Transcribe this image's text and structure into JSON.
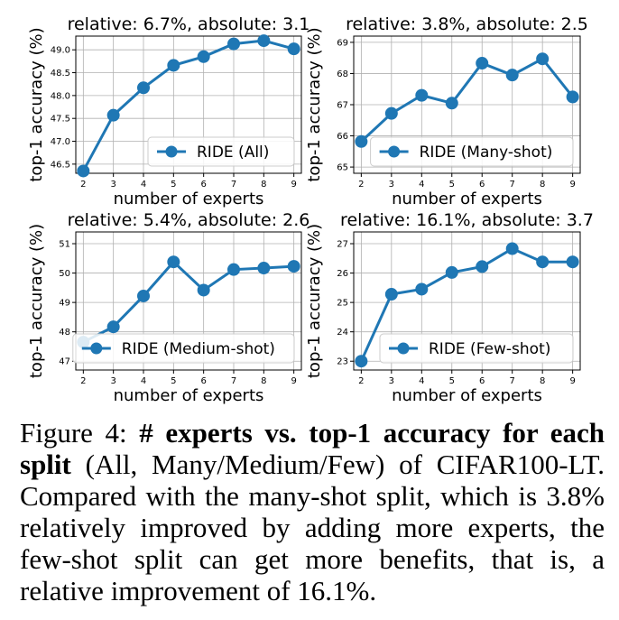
{
  "chart_data": [
    {
      "type": "line",
      "title": "relative: 6.7%, absolute: 3.1",
      "xlabel": "number of experts",
      "ylabel": "top-1 accuracy (%)",
      "x": [
        2,
        3,
        4,
        5,
        6,
        7,
        8,
        9
      ],
      "xticks": [
        "2",
        "3",
        "4",
        "5",
        "6",
        "7",
        "8",
        "9"
      ],
      "yticks": [
        "46.5",
        "47.0",
        "47.5",
        "48.0",
        "48.5",
        "49.0"
      ],
      "ylim": [
        46.3,
        49.3
      ],
      "grid": true,
      "legend_position": "bottom-right",
      "series": [
        {
          "name": "RIDE (All)",
          "values": [
            46.35,
            47.57,
            48.17,
            48.66,
            48.85,
            49.13,
            49.2,
            49.02
          ]
        }
      ]
    },
    {
      "type": "line",
      "title": "relative: 3.8%, absolute: 2.5",
      "xlabel": "number of experts",
      "ylabel": "top-1 accuracy (%)",
      "x": [
        2,
        3,
        4,
        5,
        6,
        7,
        8,
        9
      ],
      "xticks": [
        "2",
        "3",
        "4",
        "5",
        "6",
        "7",
        "8",
        "9"
      ],
      "yticks": [
        "65",
        "66",
        "67",
        "68",
        "69"
      ],
      "ylim": [
        64.8,
        69.2
      ],
      "grid": true,
      "legend_position": "bottom-right",
      "series": [
        {
          "name": "RIDE (Many-shot)",
          "values": [
            65.82,
            66.72,
            67.3,
            67.05,
            68.33,
            67.95,
            68.47,
            67.25
          ]
        }
      ]
    },
    {
      "type": "line",
      "title": "relative: 5.4%, absolute: 2.6",
      "xlabel": "number of experts",
      "ylabel": "top-1 accuracy (%)",
      "x": [
        2,
        3,
        4,
        5,
        6,
        7,
        8,
        9
      ],
      "xticks": [
        "2",
        "3",
        "4",
        "5",
        "6",
        "7",
        "8",
        "9"
      ],
      "yticks": [
        "47",
        "48",
        "49",
        "50",
        "51"
      ],
      "ylim": [
        46.7,
        51.4
      ],
      "grid": true,
      "legend_position": "bottom-right",
      "series": [
        {
          "name": "RIDE (Medium-shot)",
          "values": [
            47.65,
            48.17,
            49.22,
            50.38,
            49.42,
            50.12,
            50.17,
            50.23
          ]
        }
      ]
    },
    {
      "type": "line",
      "title": "relative: 16.1%, absolute: 3.7",
      "xlabel": "number of experts",
      "ylabel": "top-1 accuracy (%)",
      "x": [
        2,
        3,
        4,
        5,
        6,
        7,
        8,
        9
      ],
      "xticks": [
        "2",
        "3",
        "4",
        "5",
        "6",
        "7",
        "8",
        "9"
      ],
      "yticks": [
        "23",
        "24",
        "25",
        "26",
        "27"
      ],
      "ylim": [
        22.7,
        27.4
      ],
      "grid": true,
      "legend_position": "bottom-right",
      "series": [
        {
          "name": "RIDE (Few-shot)",
          "values": [
            23.0,
            25.28,
            25.45,
            26.02,
            26.22,
            26.83,
            26.38,
            26.38
          ]
        }
      ]
    }
  ],
  "colors": {
    "line": "#1f77b4",
    "grid": "#b0b0b0",
    "axis": "#000000"
  },
  "caption": {
    "label": "Figure 4: ",
    "bold": "# experts vs. top-1 accuracy for each split",
    "rest": " (All, Many/Medium/Few) of CIFAR100-LT. Compared with the many-shot split, which is 3.8% relatively improved by adding more experts, the few-shot split can get more benefits, that is, a relative improvement of 16.1%."
  }
}
